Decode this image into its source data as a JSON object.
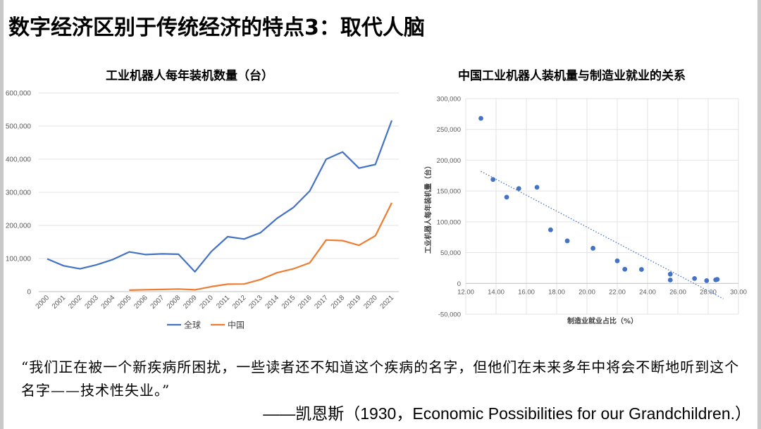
{
  "slide": {
    "title": "数字经济区别于传统经济的特点3：取代人脑",
    "quote": "“我们正在被一个新疾病所困扰，一些读者还不知道这个疾病的名字，但他们在未来多年中将会不断地听到这个名字——技术性失业。”",
    "citation": "——凯恩斯（1930，Economic Possibilities for our Grandchildren.）"
  },
  "chart_data": [
    {
      "type": "line",
      "title": "工业机器人每年装机数量（台）",
      "x": [
        "2000",
        "2001",
        "2002",
        "2003",
        "2004",
        "2005",
        "2006",
        "2007",
        "2008",
        "2009",
        "2010",
        "2011",
        "2012",
        "2013",
        "2014",
        "2015",
        "2016",
        "2017",
        "2018",
        "2019",
        "2020",
        "2021"
      ],
      "ylim": [
        0,
        600000
      ],
      "yticks": [
        "0",
        "100,000",
        "200,000",
        "300,000",
        "400,000",
        "500,000",
        "600,000"
      ],
      "grid": true,
      "legend": "bottom",
      "series": [
        {
          "name": "全球",
          "color": "#4472c4",
          "values": [
            99000,
            78000,
            69000,
            81000,
            97000,
            120000,
            112000,
            114000,
            113000,
            60000,
            121000,
            166000,
            159000,
            178000,
            221000,
            254000,
            304000,
            400000,
            422000,
            373000,
            384000,
            517000
          ]
        },
        {
          "name": "中国",
          "color": "#ed7d31",
          "values": [
            null,
            null,
            null,
            null,
            null,
            4500,
            5800,
            6500,
            7900,
            5500,
            15000,
            22600,
            23000,
            36600,
            57000,
            69000,
            87000,
            156000,
            154000,
            140000,
            168700,
            268200
          ]
        }
      ]
    },
    {
      "type": "scatter",
      "title": "中国工业机器人装机量与制造业就业的关系",
      "xlabel": "制造业就业占比（%）",
      "ylabel": "工业机器人每年装机量（台）",
      "xlim": [
        12,
        30
      ],
      "ylim": [
        -50000,
        300000
      ],
      "xticks": [
        "12.00",
        "14.00",
        "16.00",
        "18.00",
        "20.00",
        "22.00",
        "24.00",
        "26.00",
        "28.00",
        "30.00"
      ],
      "yticks": [
        "-50,000",
        "0",
        "50,000",
        "100,000",
        "150,000",
        "200,000",
        "250,000",
        "300,000"
      ],
      "grid": true,
      "trendline": {
        "style": "dotted-linear",
        "from": [
          13.0,
          182000
        ],
        "to": [
          29.0,
          -25000
        ]
      },
      "color": "#4472c4",
      "points": [
        [
          13.0,
          268000
        ],
        [
          13.8,
          168700
        ],
        [
          14.7,
          140000
        ],
        [
          15.5,
          154000
        ],
        [
          16.7,
          156000
        ],
        [
          17.6,
          87000
        ],
        [
          18.7,
          69000
        ],
        [
          20.4,
          57000
        ],
        [
          22.0,
          36600
        ],
        [
          22.5,
          23000
        ],
        [
          23.6,
          22600
        ],
        [
          25.5,
          15000
        ],
        [
          25.5,
          5500
        ],
        [
          27.1,
          7900
        ],
        [
          27.9,
          4500
        ],
        [
          28.5,
          5800
        ],
        [
          28.6,
          6500
        ]
      ]
    }
  ]
}
